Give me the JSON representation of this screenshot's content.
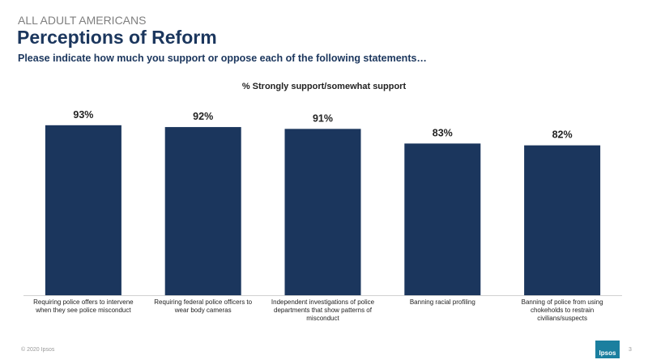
{
  "header": {
    "eyebrow": "ALL ADULT AMERICANS",
    "title": "Perceptions of Reform",
    "question": "Please indicate how much you support or oppose each of the following statements…"
  },
  "chart_data": {
    "type": "bar",
    "title": "% Strongly support/somewhat support",
    "categories": [
      "Requiring police offers to intervene when they see police misconduct",
      "Requiring federal police officers to wear body cameras",
      "Independent investigations of police departments that show patterns of misconduct",
      "Banning racial profiling",
      "Banning of police from using chokeholds to restrain civilians/suspects"
    ],
    "values": [
      93,
      92,
      91,
      83,
      82
    ],
    "value_labels": [
      "93%",
      "92%",
      "91%",
      "83%",
      "82%"
    ],
    "color": "#1b365d"
  },
  "footer": {
    "copyright": "© 2020 Ipsos",
    "page_number": 3,
    "logo": "Ipsos"
  }
}
